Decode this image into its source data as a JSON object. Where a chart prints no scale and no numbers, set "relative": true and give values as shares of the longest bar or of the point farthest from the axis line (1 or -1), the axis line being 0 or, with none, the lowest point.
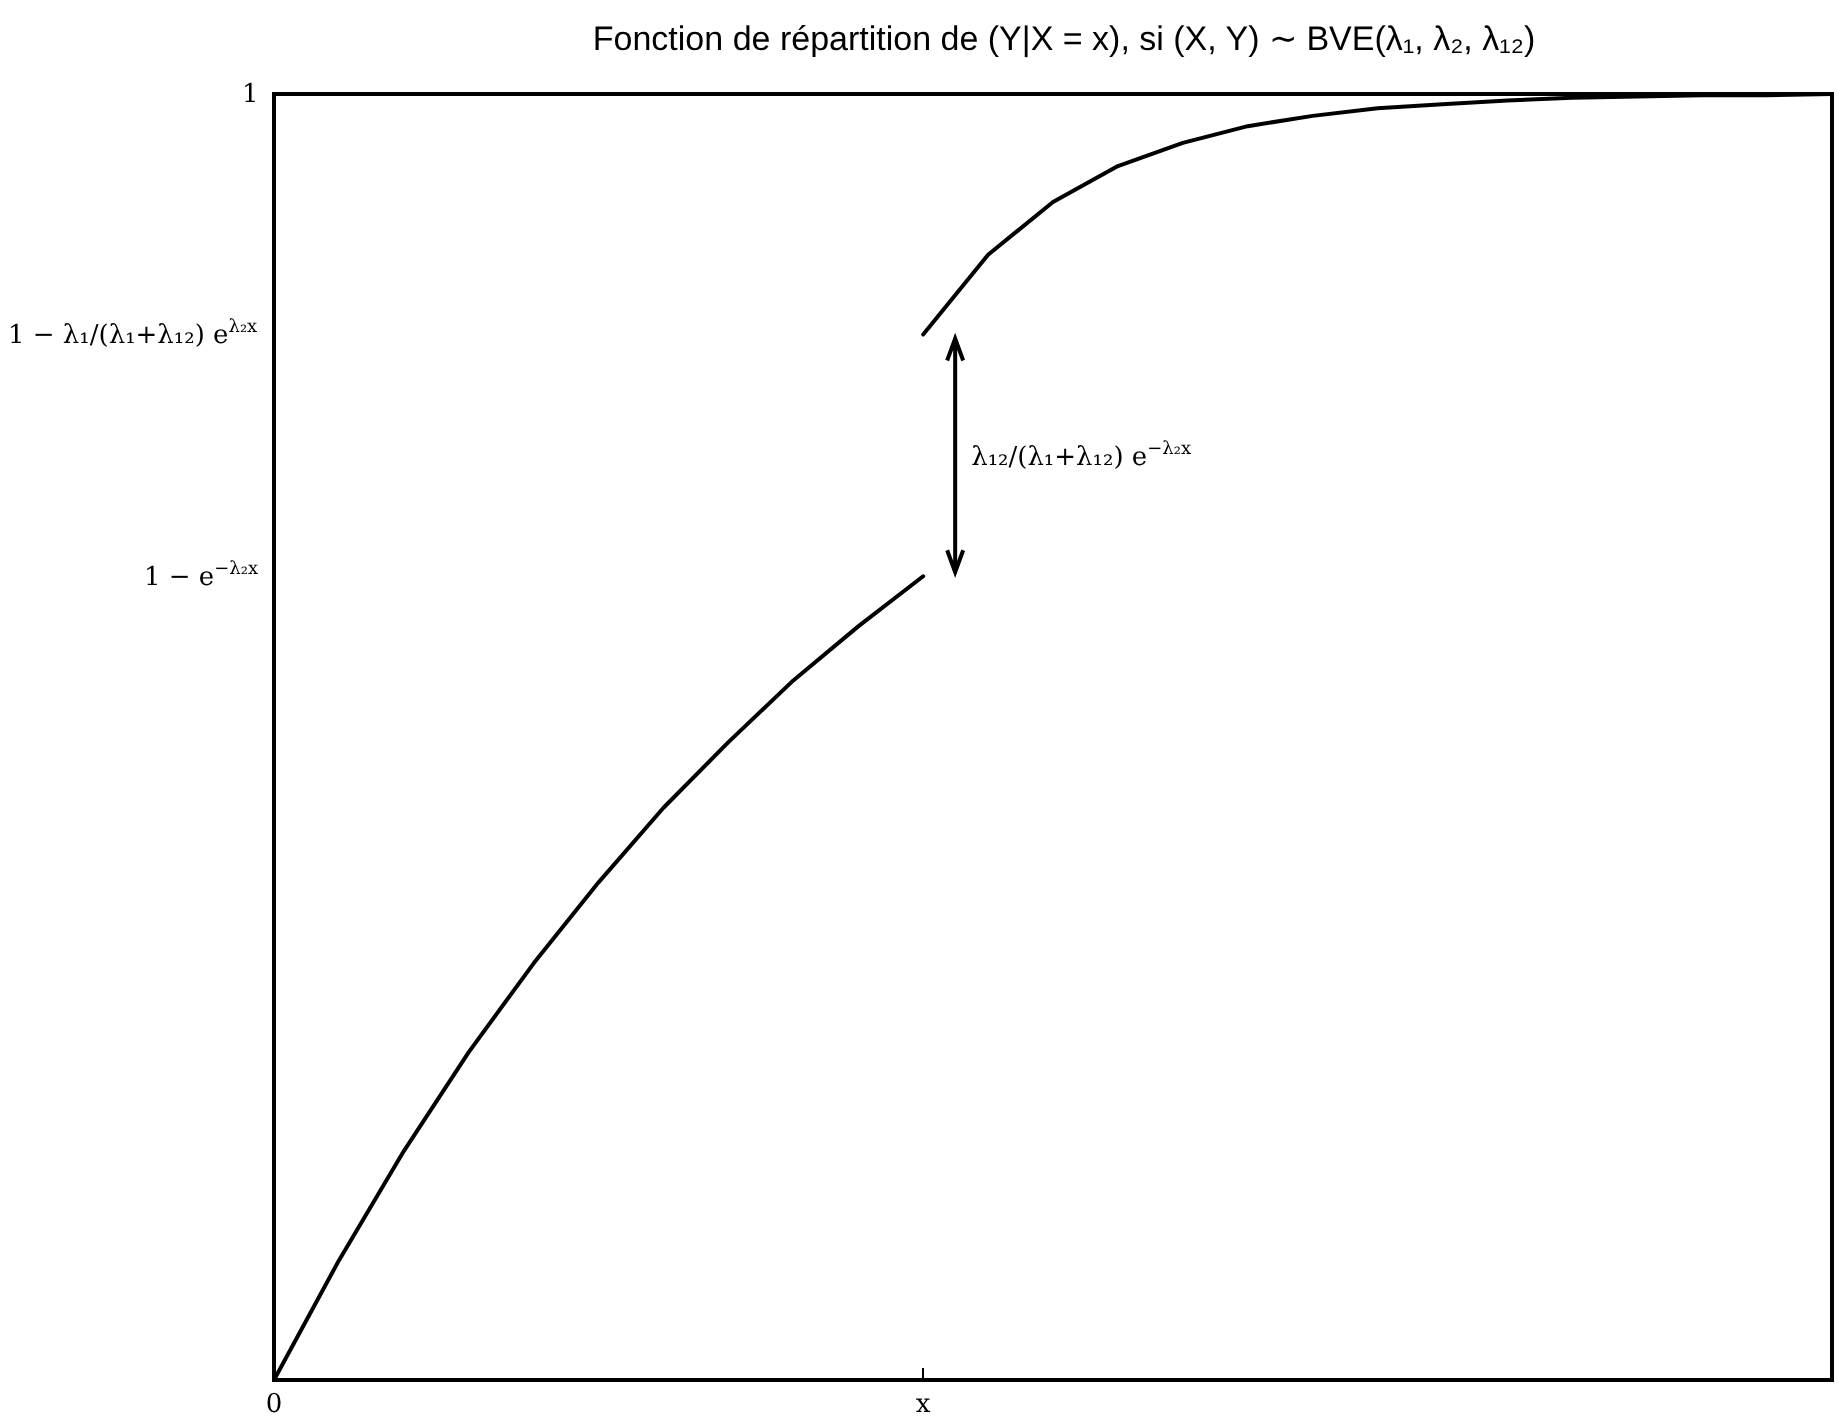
{
  "chart_data": {
    "type": "line",
    "title": "Fonction de répartition de (Y|X = x), si (X, Y) ∼ BVE(λ₁, λ₂, λ₁₂)",
    "relative": true,
    "annotations": [
      "1",
      "1 − λ₁/(λ₁+λ₁₂) e$^{λ₂x}$",
      "1 − e$^{−λ₂x}$",
      "λ₁₂/(λ₁+λ₁₂) e$^{−λ₂x}$"
    ],
    "categories": [
      "0",
      null,
      null,
      null,
      null,
      null,
      null,
      null,
      null,
      null,
      "x",
      null,
      null,
      null,
      null,
      null,
      null,
      null,
      null,
      null,
      null,
      null,
      null,
      null,
      null
    ],
    "series": [
      {
        "color": "#000000",
        "values": [
          0,
          0.093,
          0.178,
          0.255,
          0.324,
          0.387,
          0.445,
          0.496,
          0.544,
          0.586,
          0.625,
          null,
          null,
          null,
          null,
          null,
          null,
          null,
          null,
          null,
          null,
          null,
          null,
          null,
          null
        ]
      },
      {
        "color": "#000000",
        "values": [
          null,
          null,
          null,
          null,
          null,
          null,
          null,
          null,
          null,
          null,
          0.813,
          0.875,
          0.916,
          0.944,
          0.962,
          0.975,
          0.983,
          0.989,
          0.992,
          0.995,
          0.997,
          0.998,
          0.999,
          0.999,
          1.0
        ]
      }
    ],
    "line_style": "solid"
  }
}
